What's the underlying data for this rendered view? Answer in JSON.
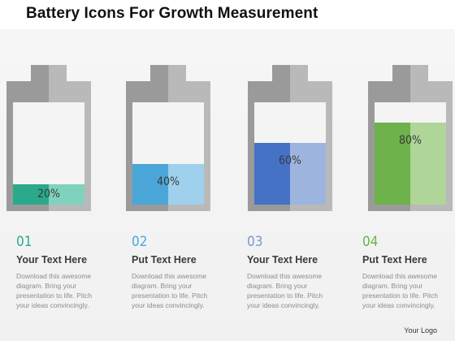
{
  "title": "Battery Icons For Growth Measurement",
  "batteries": [
    {
      "label": "20%",
      "level": 0.2,
      "color_dark": "#2aa98b",
      "color_light": "#7fd3be"
    },
    {
      "label": "40%",
      "level": 0.4,
      "color_dark": "#4aa6d8",
      "color_light": "#9fd0ec"
    },
    {
      "label": "60%",
      "level": 0.6,
      "color_dark": "#4572c5",
      "color_light": "#9db4df"
    },
    {
      "label": "80%",
      "level": 0.8,
      "color_dark": "#6db24a",
      "color_light": "#b0d598"
    }
  ],
  "steps": [
    {
      "number": "01",
      "color": "#2aa98b",
      "heading": "Your Text Here",
      "desc": "Download this awesome diagram. Bring your presentation to life. Pitch your ideas convincingly."
    },
    {
      "number": "02",
      "color": "#4aa6d8",
      "heading": "Put Text Here",
      "desc": "Download this awesome diagram. Bring your presentation to life. Pitch your ideas convincingly."
    },
    {
      "number": "03",
      "color": "#7c97cf",
      "heading": "Your Text Here",
      "desc": "Download this awesome diagram. Bring your presentation to life. Pitch your ideas convincingly."
    },
    {
      "number": "04",
      "color": "#6db24a",
      "heading": "Put Text Here",
      "desc": "Download this awesome diagram. Bring your presentation to life. Pitch your ideas convincingly."
    }
  ],
  "logo": "Your Logo"
}
